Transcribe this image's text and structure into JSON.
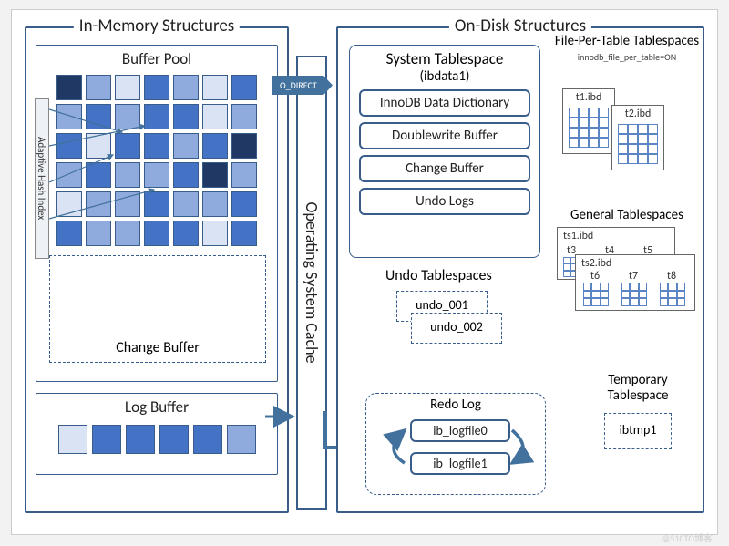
{
  "left": {
    "title": "In-Memory Structures",
    "buffer_pool": {
      "title": "Buffer Pool"
    },
    "ahi": "Adaptive Hash Index",
    "change_buffer": "Change Buffer",
    "log_buffer": "Log Buffer",
    "grid": {
      "rows": 6,
      "cols": 7,
      "colors": [
        "#1f3864",
        "#8faadc",
        "#dae3f3",
        "#4472c4",
        "#8faadc",
        "#dae3f3",
        "#4472c4",
        "#8faadc",
        "#4472c4",
        "#8faadc",
        "#4472c4",
        "#4472c4",
        "#dae3f3",
        "#8faadc",
        "#4472c4",
        "#dae3f3",
        "#4472c4",
        "#4472c4",
        "#8faadc",
        "#4472c4",
        "#1f3864",
        "#8faadc",
        "#4472c4",
        "#8faadc",
        "#8faadc",
        "#4472c4",
        "#1f3864",
        "#8faadc",
        "#dae3f3",
        "#8faadc",
        "#8faadc",
        "#4472c4",
        "#8faadc",
        "#8faadc",
        "#4472c4",
        "#4472c4",
        "#8faadc",
        "#8faadc",
        "#4472c4",
        "#4472c4",
        "#dae3f3",
        "#4472c4"
      ]
    },
    "log_cells": [
      "#dae3f3",
      "#4472c4",
      "#4472c4",
      "#4472c4",
      "#4472c4",
      "#8faadc"
    ]
  },
  "osc": {
    "label": "Operating System Cache",
    "o_direct": "O_DIRECT"
  },
  "right": {
    "title": "On-Disk Structures",
    "system_ts": {
      "title": "System Tablespace",
      "subtitle": "(ibdata1)",
      "items": [
        "InnoDB Data Dictionary",
        "Doublewrite Buffer",
        "Change Buffer",
        "Undo Logs"
      ]
    },
    "undo": {
      "title": "Undo Tablespaces",
      "files": [
        "undo_001",
        "undo_002"
      ]
    },
    "redo": {
      "title": "Redo Log",
      "files": [
        "ib_logfile0",
        "ib_logfile1"
      ]
    },
    "fpt": {
      "title": "File-Per-Table Tablespaces",
      "option": "innodb_file_per_table=ON",
      "files": [
        "t1.ibd",
        "t2.ibd"
      ]
    },
    "general": {
      "title": "General Tablespaces",
      "file1": "ts1.ibd",
      "tables1": [
        "t3",
        "t4",
        "t5"
      ],
      "file2": "ts2.ibd",
      "tables2": [
        "t6",
        "t7",
        "t8"
      ]
    },
    "temp": {
      "title": "Temporary Tablespace",
      "file": "ibtmp1"
    }
  },
  "watermark": "@51CTO博客",
  "colors": {
    "border": "#385d8a",
    "arrow": "#41719c",
    "grid_line": "#5b84c4"
  }
}
